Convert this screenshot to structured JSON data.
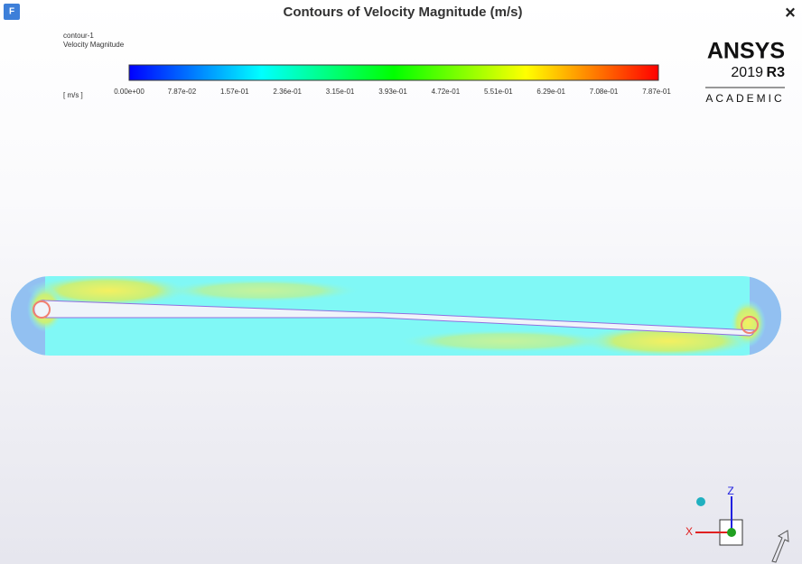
{
  "window": {
    "icon": "F",
    "title": "Contours of Velocity Magnitude (m/s)",
    "close": "×"
  },
  "legend": {
    "name": "contour-1",
    "variable": "Velocity Magnitude",
    "unit": "[ m/s ]",
    "ticks": [
      "0.00e+00",
      "7.87e-02",
      "1.57e-01",
      "2.36e-01",
      "3.15e-01",
      "3.93e-01",
      "4.72e-01",
      "5.51e-01",
      "6.29e-01",
      "7.08e-01",
      "7.87e-01"
    ]
  },
  "logo": {
    "brand": "ANSYS",
    "year": "2019",
    "release": "R3",
    "edition": "ACADEMIC"
  },
  "triad": {
    "z": "Z",
    "x": "X"
  }
}
